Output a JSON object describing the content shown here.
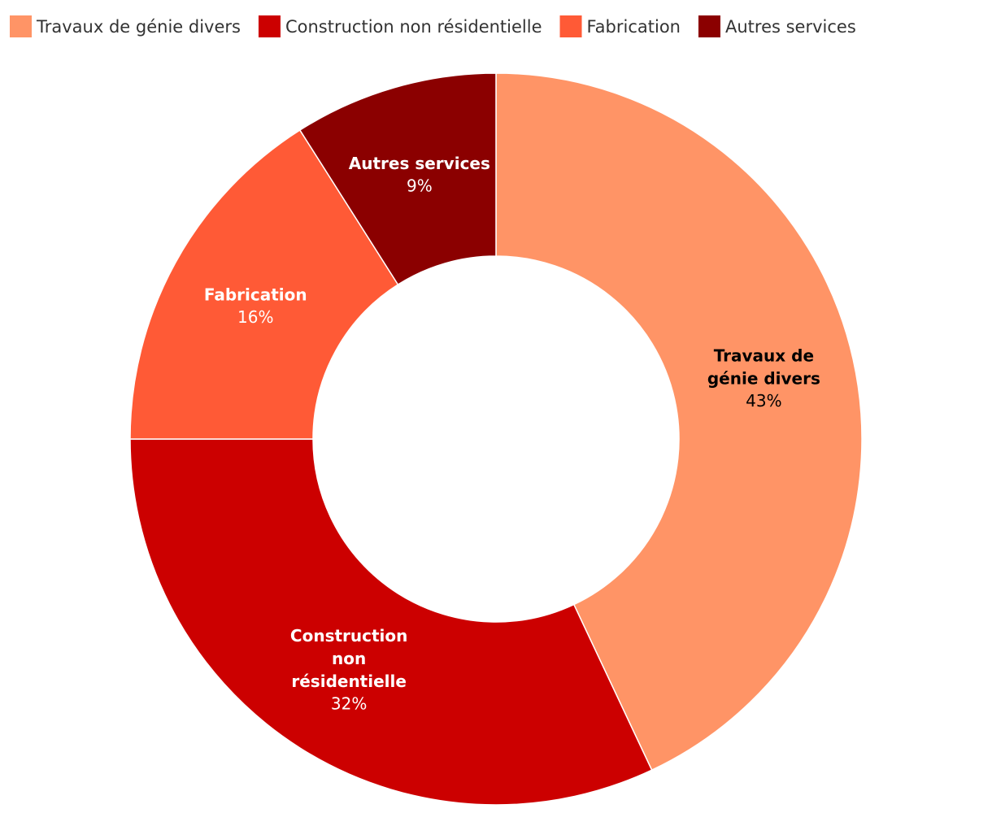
{
  "chart_data": {
    "type": "donut",
    "categories": [
      "Travaux de génie divers",
      "Construction non résidentielle",
      "Fabrication",
      "Autres services"
    ],
    "values": [
      43,
      32,
      16,
      9
    ],
    "value_labels": [
      "43%",
      "32%",
      "16%",
      "9%"
    ],
    "colors": [
      "#ff9466",
      "#cc0000",
      "#ff5a36",
      "#8b0000"
    ],
    "legend": "top-left"
  }
}
